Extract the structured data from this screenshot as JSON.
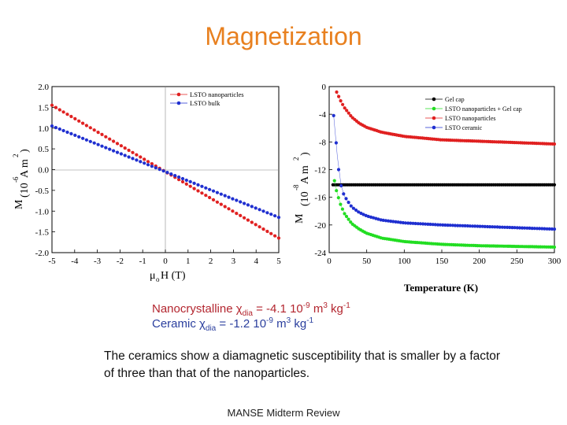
{
  "slide": {
    "title": "Magnetization",
    "footer": "MANSE Midterm Review",
    "formula_nano_label": "Nanocrystalline ",
    "formula_nano_sym": "χ",
    "formula_nano_sub": "dia",
    "formula_nano_value": " = -4.1 10",
    "formula_nano_exp": "-9",
    "formula_nano_unit1": " m",
    "formula_nano_unit1_exp": "3",
    "formula_nano_unit2": " kg",
    "formula_nano_unit2_exp": "-1",
    "formula_ceramic_label": "Ceramic  ",
    "formula_ceramic_sym": "χ",
    "formula_ceramic_sub": "dia",
    "formula_ceramic_value": " = -1.2 10",
    "formula_ceramic_exp": "-9",
    "formula_ceramic_unit1": " m",
    "formula_ceramic_unit1_exp": "3",
    "formula_ceramic_unit2": " kg",
    "formula_ceramic_unit2_exp": "-1",
    "body": "The ceramics show a diamagnetic susceptibility that is smaller by a factor of three than that of the nanoparticles."
  },
  "chart_data": [
    {
      "type": "scatter",
      "title": "",
      "xlabel": "μoH (T)",
      "ylabel": "M (10^-6 Am^2)",
      "xlim": [
        -5,
        5
      ],
      "ylim": [
        -2.0,
        2.0
      ],
      "xticks": [
        "-5",
        "-4",
        "-3",
        "-2",
        "-1",
        "0",
        "1",
        "2",
        "3",
        "4",
        "5"
      ],
      "yticks": [
        "2.0",
        "1.5",
        "1.0",
        "0.5",
        "0.0",
        "-0.5",
        "-1.0",
        "-1.5",
        "-2.0"
      ],
      "legend_position": "top-right",
      "colors": [
        "#e02020",
        "#1f2fd0"
      ],
      "series": [
        {
          "name": "LSTO nanoparticles",
          "x": [
            -5,
            5
          ],
          "y": [
            1.55,
            -1.65
          ]
        },
        {
          "name": "LSTO bulk",
          "x": [
            -5,
            5
          ],
          "y": [
            1.05,
            -1.15
          ]
        }
      ]
    },
    {
      "type": "scatter",
      "title": "",
      "xlabel": "Temperature (K)",
      "ylabel": "M (10^-8 Am^2)",
      "xlim": [
        0,
        300
      ],
      "ylim": [
        -24,
        0
      ],
      "xticks": [
        "0",
        "50",
        "100",
        "150",
        "200",
        "250",
        "300"
      ],
      "yticks": [
        "0",
        "-4",
        "-8",
        "-12",
        "-16",
        "-20",
        "-24"
      ],
      "legend_position": "top-right",
      "colors": [
        "#000000",
        "#22dd22",
        "#e02020",
        "#1f2fd0"
      ],
      "series": [
        {
          "name": "Gel cap",
          "x": [
            5,
            300
          ],
          "y": [
            -14.2,
            -14.2
          ]
        },
        {
          "name": "LSTO nanoparticles + Gel cap",
          "x": [
            7,
            10,
            15,
            20,
            30,
            40,
            50,
            70,
            100,
            150,
            200,
            250,
            300
          ],
          "y": [
            -13.6,
            -15.2,
            -17.0,
            -18.3,
            -19.8,
            -20.6,
            -21.2,
            -21.9,
            -22.4,
            -22.8,
            -23.0,
            -23.1,
            -23.2
          ]
        },
        {
          "name": "LSTO nanoparticles",
          "x": [
            10,
            15,
            20,
            30,
            40,
            50,
            70,
            100,
            150,
            200,
            250,
            300
          ],
          "y": [
            -0.8,
            -2.0,
            -3.0,
            -4.4,
            -5.3,
            -5.9,
            -6.6,
            -7.2,
            -7.7,
            -7.9,
            -8.1,
            -8.3
          ]
        },
        {
          "name": "LSTO ceramic",
          "x": [
            6,
            8,
            10,
            12,
            15,
            20,
            30,
            40,
            50,
            70,
            100,
            150,
            200,
            250,
            300
          ],
          "y": [
            -4.2,
            -6.5,
            -9.0,
            -11.5,
            -14.0,
            -15.8,
            -17.4,
            -18.2,
            -18.7,
            -19.3,
            -19.7,
            -20.0,
            -20.2,
            -20.4,
            -20.6
          ]
        }
      ]
    }
  ]
}
